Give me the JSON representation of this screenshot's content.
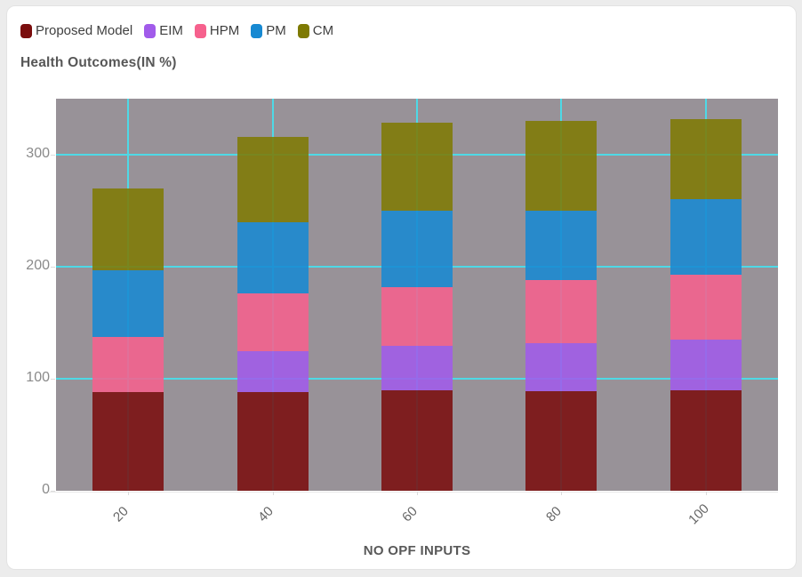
{
  "page": {
    "background": "#ECECEC",
    "card_background": "#FFFFFF"
  },
  "chart_data": {
    "type": "bar",
    "stacked": true,
    "title": "Health Outcomes(IN %)",
    "xlabel": "NO OPF INPUTS",
    "ylabel": "",
    "categories": [
      "20",
      "40",
      "60",
      "80",
      "100"
    ],
    "series": [
      {
        "name": "Proposed Model",
        "color": "#7A0D0D",
        "values": [
          88,
          88,
          90,
          89,
          90
        ]
      },
      {
        "name": "EIM",
        "color": "#A15BEA",
        "values": [
          0,
          37,
          39,
          43,
          45
        ]
      },
      {
        "name": "HPM",
        "color": "#F6618D",
        "values": [
          49,
          51,
          53,
          56,
          58
        ]
      },
      {
        "name": "PM",
        "color": "#1789D2",
        "values": [
          60,
          64,
          68,
          62,
          67
        ]
      },
      {
        "name": "CM",
        "color": "#7E7A02",
        "values": [
          73,
          76,
          79,
          80,
          72
        ]
      }
    ],
    "stack_totals": [
      270,
      316,
      329,
      330,
      332
    ],
    "yticks": [
      0,
      100,
      200,
      300
    ],
    "ylim": [
      0,
      350
    ],
    "grid": "both",
    "gridline_color": "#4ED9E6",
    "plot_background": "#989298",
    "legend_position": "top-left"
  }
}
